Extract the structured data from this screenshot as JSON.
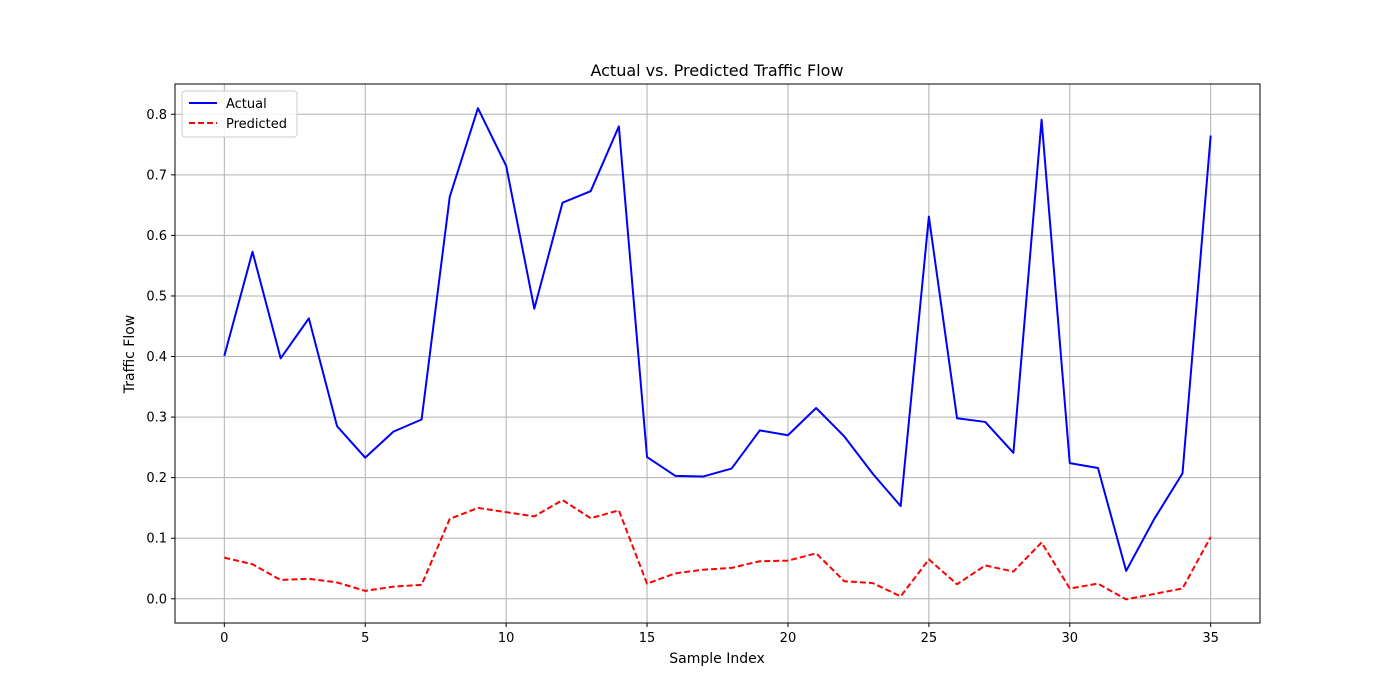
{
  "chart_data": {
    "type": "line",
    "title": "Actual vs. Predicted Traffic Flow",
    "xlabel": "Sample Index",
    "ylabel": "Traffic Flow",
    "xlim": [
      -1.75,
      36.75
    ],
    "ylim": [
      -0.04,
      0.85
    ],
    "xticks": [
      0,
      5,
      10,
      15,
      20,
      25,
      30,
      35
    ],
    "yticks": [
      0.0,
      0.1,
      0.2,
      0.3,
      0.4,
      0.5,
      0.6,
      0.7,
      0.8
    ],
    "ytick_labels": [
      "0.0",
      "0.1",
      "0.2",
      "0.3",
      "0.4",
      "0.5",
      "0.6",
      "0.7",
      "0.8"
    ],
    "grid": true,
    "legend": "upper-left",
    "x": [
      0,
      1,
      2,
      3,
      4,
      5,
      6,
      7,
      8,
      9,
      10,
      11,
      12,
      13,
      14,
      15,
      16,
      17,
      18,
      19,
      20,
      21,
      22,
      23,
      24,
      25,
      26,
      27,
      28,
      29,
      30,
      31,
      32,
      33,
      34,
      35
    ],
    "series": [
      {
        "name": "Actual",
        "color": "#0000ff",
        "style": "solid",
        "values": [
          0.401,
          0.573,
          0.397,
          0.463,
          0.285,
          0.233,
          0.276,
          0.296,
          0.664,
          0.81,
          0.715,
          0.479,
          0.654,
          0.673,
          0.78,
          0.234,
          0.203,
          0.202,
          0.215,
          0.278,
          0.27,
          0.315,
          0.268,
          0.207,
          0.153,
          0.631,
          0.298,
          0.292,
          0.241,
          0.791,
          0.224,
          0.216,
          0.046,
          0.132,
          0.207,
          0.765
        ]
      },
      {
        "name": "Predicted",
        "color": "#ff0000",
        "style": "dashed",
        "values": [
          0.068,
          0.057,
          0.031,
          0.033,
          0.027,
          0.013,
          0.02,
          0.023,
          0.132,
          0.15,
          0.143,
          0.136,
          0.163,
          0.133,
          0.146,
          0.025,
          0.042,
          0.048,
          0.051,
          0.062,
          0.063,
          0.075,
          0.029,
          0.026,
          0.004,
          0.065,
          0.024,
          0.055,
          0.045,
          0.093,
          0.017,
          0.025,
          -0.001,
          0.008,
          0.017,
          0.102
        ]
      }
    ]
  }
}
